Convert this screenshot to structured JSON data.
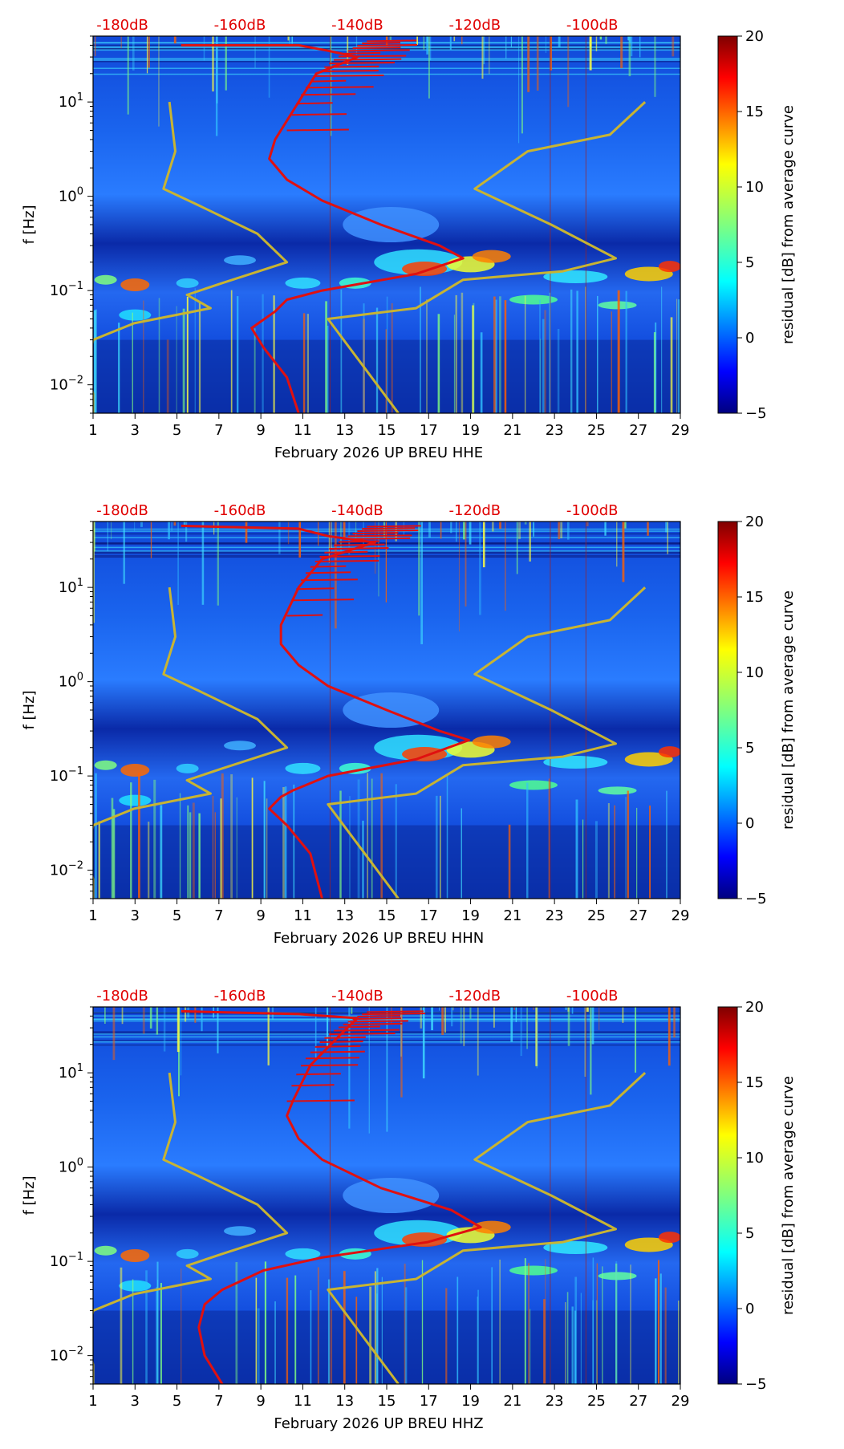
{
  "figure": {
    "month_label": "February 2026",
    "network": "UP",
    "station": "BREU",
    "colorbar_label": "residual [dB] from average curve",
    "ylabel": "f [Hz]"
  },
  "colors": {
    "noise_curve": "#e01010",
    "model_curve": "#c8b432",
    "db_label": "#e00000",
    "cmap_low": "#00007f",
    "cmap_high": "#7f0000"
  },
  "chart_data": [
    {
      "type": "heatmap",
      "channel": "HHE",
      "xlabel": "February 2026 UP BREU  HHE",
      "ylabel": "f [Hz]",
      "x_ticks": [
        "1",
        "3",
        "5",
        "7",
        "9",
        "11",
        "13",
        "15",
        "17",
        "19",
        "21",
        "23",
        "25",
        "27",
        "29"
      ],
      "y_ticks": [
        "10^-2",
        "10^-1",
        "10^0",
        "10^1"
      ],
      "xlim": [
        1,
        29
      ],
      "ylim_hz": [
        0.005,
        50
      ],
      "db_axis_labels": [
        "-180dB",
        "-160dB",
        "-140dB",
        "-120dB",
        "-100dB"
      ],
      "db_axis_range": [
        -185,
        -85
      ],
      "colorbar": {
        "min": -5,
        "max": 20,
        "ticks": [
          "20",
          "15",
          "10",
          "5",
          "0",
          "−5"
        ]
      },
      "noise_curve_db": [
        [
          -170,
          40
        ],
        [
          -150,
          40
        ],
        [
          -145,
          35
        ],
        [
          -140,
          30
        ],
        [
          -147,
          20
        ],
        [
          -150,
          10
        ],
        [
          -154,
          4
        ],
        [
          -155,
          2.5
        ],
        [
          -152,
          1.5
        ],
        [
          -146,
          0.9
        ],
        [
          -136,
          0.5
        ],
        [
          -126,
          0.3
        ],
        [
          -122,
          0.22
        ],
        [
          -130,
          0.15
        ],
        [
          -146,
          0.1
        ],
        [
          -152,
          0.08
        ],
        [
          -154,
          0.06
        ],
        [
          -158,
          0.04
        ],
        [
          -156,
          0.025
        ],
        [
          -152,
          0.012
        ],
        [
          -150,
          0.005
        ]
      ],
      "model_low_db": [
        [
          -172,
          10
        ],
        [
          -171,
          3
        ],
        [
          -173,
          1.2
        ],
        [
          -167,
          0.8
        ],
        [
          -157,
          0.4
        ],
        [
          -152,
          0.2
        ],
        [
          -163,
          0.12
        ],
        [
          -169,
          0.09
        ],
        [
          -165,
          0.065
        ],
        [
          -178,
          0.045
        ],
        [
          -185,
          0.03
        ],
        [
          -186,
          0.015
        ],
        [
          -185,
          0.008
        ],
        [
          -185,
          0.005
        ]
      ],
      "model_high_db": [
        [
          -91,
          10
        ],
        [
          -97,
          4.5
        ],
        [
          -111,
          3
        ],
        [
          -120,
          1.2
        ],
        [
          -107,
          0.5
        ],
        [
          -96,
          0.22
        ],
        [
          -105,
          0.16
        ],
        [
          -122,
          0.13
        ],
        [
          -130,
          0.065
        ],
        [
          -145,
          0.05
        ],
        [
          -133,
          0.005
        ]
      ]
    },
    {
      "type": "heatmap",
      "channel": "HHN",
      "xlabel": "February 2026 UP BREU  HHN",
      "ylabel": "f [Hz]",
      "x_ticks": [
        "1",
        "3",
        "5",
        "7",
        "9",
        "11",
        "13",
        "15",
        "17",
        "19",
        "21",
        "23",
        "25",
        "27",
        "29"
      ],
      "y_ticks": [
        "10^-2",
        "10^-1",
        "10^0",
        "10^1"
      ],
      "xlim": [
        1,
        29
      ],
      "ylim_hz": [
        0.005,
        50
      ],
      "db_axis_labels": [
        "-180dB",
        "-160dB",
        "-140dB",
        "-120dB",
        "-100dB"
      ],
      "db_axis_range": [
        -185,
        -85
      ],
      "colorbar": {
        "min": -5,
        "max": 20,
        "ticks": [
          "20",
          "15",
          "10",
          "5",
          "0",
          "−5"
        ]
      },
      "noise_curve_db": [
        [
          -170,
          45
        ],
        [
          -150,
          42
        ],
        [
          -145,
          35
        ],
        [
          -137,
          30
        ],
        [
          -146,
          20
        ],
        [
          -150,
          10
        ],
        [
          -153,
          4
        ],
        [
          -153,
          2.5
        ],
        [
          -150,
          1.5
        ],
        [
          -145,
          0.9
        ],
        [
          -135,
          0.5
        ],
        [
          -126,
          0.3
        ],
        [
          -121,
          0.24
        ],
        [
          -130,
          0.15
        ],
        [
          -145,
          0.1
        ],
        [
          -151,
          0.07
        ],
        [
          -153,
          0.06
        ],
        [
          -155,
          0.045
        ],
        [
          -152,
          0.03
        ],
        [
          -148,
          0.015
        ],
        [
          -146,
          0.005
        ]
      ],
      "model_low_db": [
        [
          -172,
          10
        ],
        [
          -171,
          3
        ],
        [
          -173,
          1.2
        ],
        [
          -167,
          0.8
        ],
        [
          -157,
          0.4
        ],
        [
          -152,
          0.2
        ],
        [
          -163,
          0.12
        ],
        [
          -169,
          0.09
        ],
        [
          -165,
          0.065
        ],
        [
          -178,
          0.045
        ],
        [
          -185,
          0.03
        ],
        [
          -186,
          0.015
        ],
        [
          -185,
          0.008
        ],
        [
          -185,
          0.005
        ]
      ],
      "model_high_db": [
        [
          -91,
          10
        ],
        [
          -97,
          4.5
        ],
        [
          -111,
          3
        ],
        [
          -120,
          1.2
        ],
        [
          -107,
          0.5
        ],
        [
          -96,
          0.22
        ],
        [
          -105,
          0.16
        ],
        [
          -122,
          0.13
        ],
        [
          -130,
          0.065
        ],
        [
          -145,
          0.05
        ],
        [
          -133,
          0.005
        ]
      ]
    },
    {
      "type": "heatmap",
      "channel": "HHZ",
      "xlabel": "February 2026 UP BREU  HHZ",
      "ylabel": "f [Hz]",
      "x_ticks": [
        "1",
        "3",
        "5",
        "7",
        "9",
        "11",
        "13",
        "15",
        "17",
        "19",
        "21",
        "23",
        "25",
        "27",
        "29"
      ],
      "y_ticks": [
        "10^-2",
        "10^-1",
        "10^0",
        "10^1"
      ],
      "xlim": [
        1,
        29
      ],
      "ylim_hz": [
        0.005,
        50
      ],
      "db_axis_labels": [
        "-180dB",
        "-160dB",
        "-140dB",
        "-120dB",
        "-100dB"
      ],
      "db_axis_range": [
        -185,
        -85
      ],
      "colorbar": {
        "min": -5,
        "max": 20,
        "ticks": [
          "20",
          "15",
          "10",
          "5",
          "0",
          "−5"
        ]
      },
      "noise_curve_db": [
        [
          -170,
          45
        ],
        [
          -150,
          42
        ],
        [
          -140,
          38
        ],
        [
          -143,
          25
        ],
        [
          -148,
          12
        ],
        [
          -151,
          5
        ],
        [
          -152,
          3.5
        ],
        [
          -150,
          2
        ],
        [
          -146,
          1.2
        ],
        [
          -136,
          0.6
        ],
        [
          -124,
          0.35
        ],
        [
          -119,
          0.23
        ],
        [
          -128,
          0.16
        ],
        [
          -146,
          0.11
        ],
        [
          -156,
          0.08
        ],
        [
          -163,
          0.05
        ],
        [
          -166,
          0.035
        ],
        [
          -167,
          0.02
        ],
        [
          -166,
          0.01
        ],
        [
          -163,
          0.005
        ]
      ],
      "model_low_db": [
        [
          -172,
          10
        ],
        [
          -171,
          3
        ],
        [
          -173,
          1.2
        ],
        [
          -167,
          0.8
        ],
        [
          -157,
          0.4
        ],
        [
          -152,
          0.2
        ],
        [
          -163,
          0.12
        ],
        [
          -169,
          0.09
        ],
        [
          -165,
          0.065
        ],
        [
          -178,
          0.045
        ],
        [
          -185,
          0.03
        ],
        [
          -186,
          0.015
        ],
        [
          -185,
          0.008
        ],
        [
          -185,
          0.005
        ]
      ],
      "model_high_db": [
        [
          -91,
          10
        ],
        [
          -97,
          4.5
        ],
        [
          -111,
          3
        ],
        [
          -120,
          1.2
        ],
        [
          -107,
          0.5
        ],
        [
          -96,
          0.22
        ],
        [
          -105,
          0.16
        ],
        [
          -122,
          0.13
        ],
        [
          -130,
          0.065
        ],
        [
          -145,
          0.05
        ],
        [
          -133,
          0.005
        ]
      ]
    }
  ]
}
